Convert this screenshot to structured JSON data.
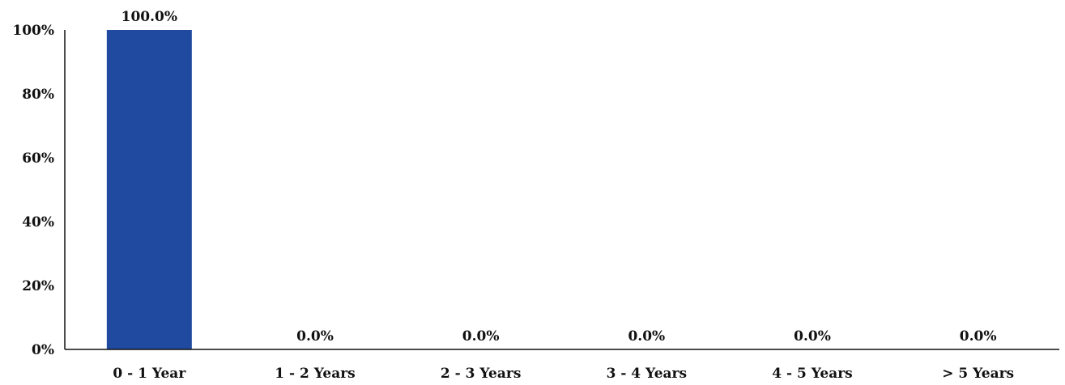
{
  "chart_data": {
    "type": "bar",
    "categories": [
      "0 - 1 Year",
      "1 - 2 Years",
      "2 - 3 Years",
      "3 - 4 Years",
      "4 - 5 Years",
      "> 5 Years"
    ],
    "values": [
      100.0,
      0.0,
      0.0,
      0.0,
      0.0,
      0.0
    ],
    "data_labels": [
      "100.0%",
      "0.0%",
      "0.0%",
      "0.0%",
      "0.0%",
      "0.0%"
    ],
    "yticks": [
      "0%",
      "20%",
      "40%",
      "60%",
      "80%",
      "100%"
    ],
    "ylim": [
      0,
      100
    ],
    "grid": false,
    "legend": "none",
    "title": "",
    "xlabel": "",
    "ylabel": "",
    "colors": {
      "bar": "#1f4aa0",
      "axis": "#111111",
      "text": "#111111"
    }
  }
}
